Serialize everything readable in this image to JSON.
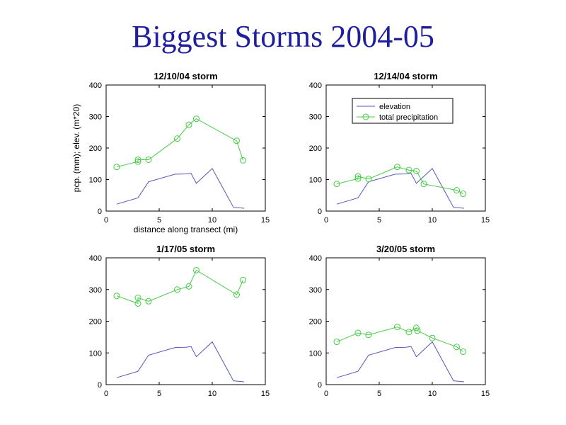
{
  "slide": {
    "title": "Biggest Storms 2004-05"
  },
  "chart_data": [
    {
      "type": "line",
      "title": "12/10/04 storm",
      "xlabel": "distance along transect (mi)",
      "ylabel": "pcp. (mm);  elev. (m*20)",
      "xlim": [
        0,
        15
      ],
      "ylim": [
        0,
        400
      ],
      "xticks": [
        0,
        5,
        10,
        15
      ],
      "yticks": [
        0,
        100,
        200,
        300,
        400
      ],
      "legend": null,
      "series": [
        {
          "color": "#5555bb",
          "marker": "none",
          "x": [
            1,
            3,
            4,
            6.5,
            7.5,
            8,
            8.5,
            10,
            12,
            13
          ],
          "y": [
            22,
            42,
            93,
            117,
            118,
            120,
            88,
            135,
            12,
            9
          ]
        },
        {
          "color": "#44cc44",
          "marker": "circle",
          "x": [
            1,
            3,
            3,
            4,
            6.7,
            7.8,
            8.5,
            12.3,
            12.9
          ],
          "y": [
            140,
            157,
            163,
            163,
            230,
            274,
            293,
            223,
            161
          ]
        }
      ]
    },
    {
      "type": "line",
      "title": "12/14/04 storm",
      "xlabel": "",
      "ylabel": "",
      "xlim": [
        0,
        15
      ],
      "ylim": [
        0,
        400
      ],
      "xticks": [
        0,
        5,
        10,
        15
      ],
      "yticks": [
        0,
        100,
        200,
        300,
        400
      ],
      "legend": {
        "position": "top-center",
        "entries": [
          "elevation",
          "total precipitation"
        ]
      },
      "series": [
        {
          "name": "elevation",
          "color": "#5555bb",
          "marker": "none",
          "x": [
            1,
            3,
            4,
            6.5,
            7.5,
            8,
            8.5,
            10,
            12,
            13
          ],
          "y": [
            22,
            42,
            93,
            117,
            118,
            120,
            88,
            135,
            12,
            9
          ]
        },
        {
          "name": "total precipitation",
          "color": "#44cc44",
          "marker": "circle",
          "x": [
            1,
            3,
            3,
            4,
            6.7,
            7.8,
            8.5,
            9.2,
            12.3,
            12.9
          ],
          "y": [
            86,
            103,
            110,
            102,
            140,
            130,
            127,
            86,
            66,
            55
          ]
        }
      ]
    },
    {
      "type": "line",
      "title": "1/17/05 storm",
      "xlabel": "",
      "ylabel": "",
      "xlim": [
        0,
        15
      ],
      "ylim": [
        0,
        400
      ],
      "xticks": [
        0,
        5,
        10,
        15
      ],
      "yticks": [
        0,
        100,
        200,
        300,
        400
      ],
      "legend": null,
      "series": [
        {
          "color": "#5555bb",
          "marker": "none",
          "x": [
            1,
            3,
            4,
            6.5,
            7.5,
            8,
            8.5,
            10,
            12,
            13
          ],
          "y": [
            22,
            42,
            93,
            117,
            118,
            120,
            88,
            135,
            12,
            9
          ]
        },
        {
          "color": "#44cc44",
          "marker": "circle",
          "x": [
            1,
            3,
            3,
            4,
            6.7,
            7.8,
            8.5,
            12.3,
            12.9
          ],
          "y": [
            280,
            256,
            274,
            263,
            300,
            310,
            361,
            284,
            330
          ]
        }
      ]
    },
    {
      "type": "line",
      "title": "3/20/05 storm",
      "xlabel": "",
      "ylabel": "",
      "xlim": [
        0,
        15
      ],
      "ylim": [
        0,
        400
      ],
      "xticks": [
        0,
        5,
        10,
        15
      ],
      "yticks": [
        0,
        100,
        200,
        300,
        400
      ],
      "legend": null,
      "series": [
        {
          "color": "#5555bb",
          "marker": "none",
          "x": [
            1,
            3,
            4,
            6.5,
            7.5,
            8,
            8.5,
            10,
            12,
            13
          ],
          "y": [
            22,
            42,
            93,
            117,
            118,
            120,
            88,
            135,
            12,
            9
          ]
        },
        {
          "color": "#44cc44",
          "marker": "circle",
          "x": [
            1,
            3,
            4,
            6.7,
            7.8,
            8.5,
            8.6,
            10,
            12.3,
            12.9
          ],
          "y": [
            135,
            163,
            157,
            182,
            166,
            179,
            170,
            147,
            119,
            104
          ]
        }
      ]
    }
  ]
}
